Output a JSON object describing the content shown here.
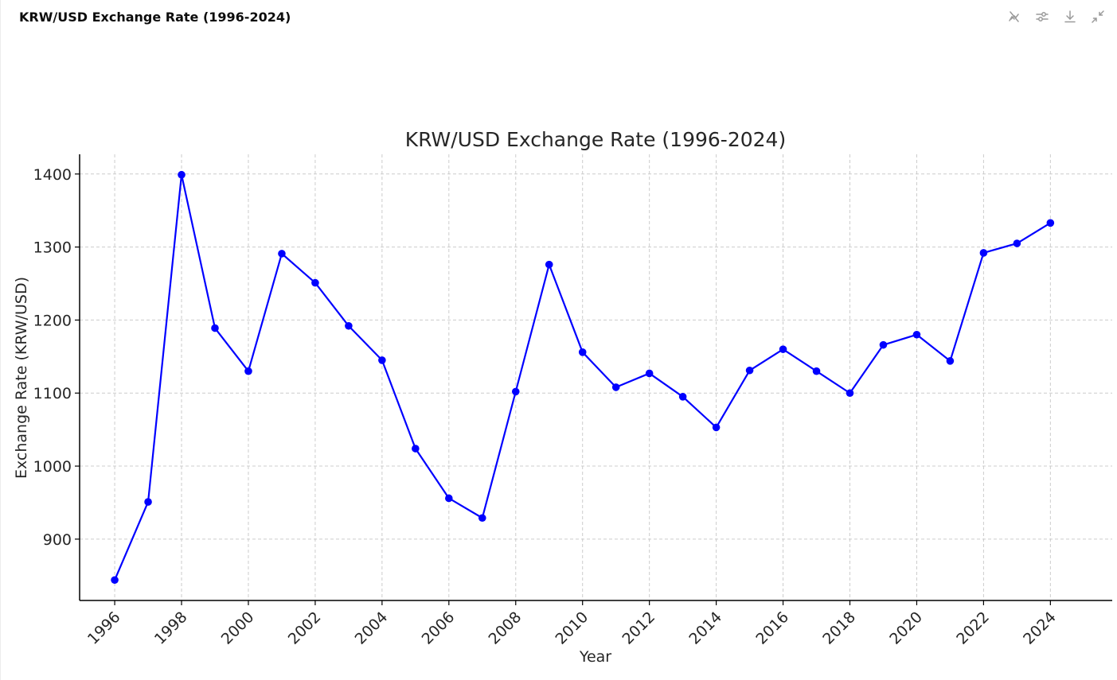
{
  "header": {
    "title": "KRW/USD Exchange Rate (1996-2024)"
  },
  "toolbar": {
    "icons": [
      "interactive-chart-icon",
      "adjust-sliders-icon",
      "download-icon",
      "collapse-icon"
    ]
  },
  "colors": {
    "line": "#0000ff",
    "grid": "#cccccc",
    "axis": "#000000",
    "text": "#262626",
    "icon": "#9a9a9a"
  },
  "chart_data": {
    "type": "line",
    "title": "KRW/USD Exchange Rate (1996-2024)",
    "xlabel": "Year",
    "ylabel": "Exchange Rate (KRW/USD)",
    "x": [
      1996,
      1997,
      1998,
      1999,
      2000,
      2001,
      2002,
      2003,
      2004,
      2005,
      2006,
      2007,
      2008,
      2009,
      2010,
      2011,
      2012,
      2013,
      2014,
      2015,
      2016,
      2017,
      2018,
      2019,
      2020,
      2021,
      2022,
      2023,
      2024
    ],
    "series": [
      {
        "values": [
          844,
          951,
          1399,
          1189,
          1130,
          1291,
          1251,
          1192,
          1145,
          1024,
          956,
          929,
          1102,
          1276,
          1156,
          1108,
          1127,
          1095,
          1053,
          1131,
          1160,
          1130,
          1100,
          1166,
          1180,
          1144,
          1292,
          1305,
          1333
        ],
        "color": "#0000ff",
        "marker": "circle"
      }
    ],
    "xticks": [
      "1996",
      "1998",
      "2000",
      "2002",
      "2004",
      "2006",
      "2008",
      "2010",
      "2012",
      "2014",
      "2016",
      "2018",
      "2020",
      "2022",
      "2024"
    ],
    "yticks": [
      "900",
      "1000",
      "1100",
      "1200",
      "1300",
      "1400"
    ],
    "xlim": [
      1994.95,
      2025.85
    ],
    "ylim": [
      816,
      1427
    ],
    "grid": true
  }
}
